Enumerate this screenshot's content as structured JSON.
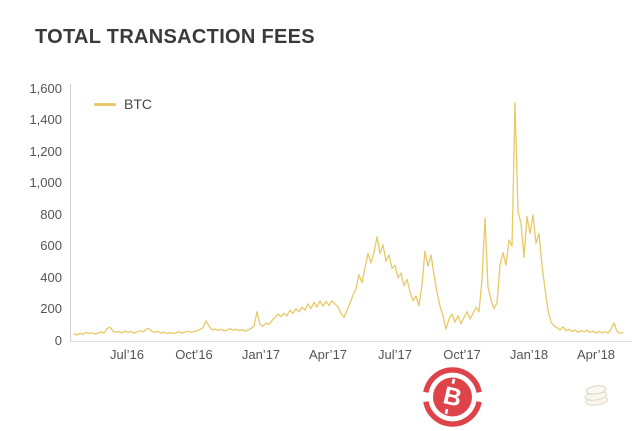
{
  "page": {
    "background": "#ffffff"
  },
  "header": {
    "title": "TOTAL TRANSACTION FEES"
  },
  "chart_data": {
    "type": "line",
    "title": "TOTAL TRANSACTION FEES",
    "xlabel": "",
    "ylabel": "",
    "ylim": [
      0,
      1600
    ],
    "grid": false,
    "legend_position": "top-left",
    "x_tick_labels": [
      "Jul’16",
      "Oct’16",
      "Jan’17",
      "Apr’17",
      "Jul’17",
      "Oct’17",
      "Jan’18",
      "Apr’18"
    ],
    "y_tick_labels": [
      "1,600",
      "1,400",
      "1,200",
      "1,000",
      "800",
      "600",
      "400",
      "200",
      "0"
    ],
    "x_range_note": "evenly spaced daily samples, approx. Apr 2016 - May 2018",
    "series": [
      {
        "name": "BTC",
        "color": "#e7ca65",
        "values": [
          45,
          38,
          48,
          42,
          55,
          47,
          52,
          44,
          50,
          58,
          50,
          78,
          88,
          62,
          55,
          60,
          52,
          63,
          55,
          60,
          50,
          57,
          65,
          58,
          72,
          80,
          60,
          55,
          62,
          50,
          56,
          48,
          54,
          47,
          52,
          58,
          50,
          57,
          62,
          55,
          60,
          66,
          72,
          85,
          128,
          95,
          70,
          76,
          68,
          74,
          64,
          70,
          78,
          68,
          75,
          65,
          72,
          62,
          70,
          80,
          95,
          185,
          105,
          95,
          115,
          105,
          130,
          150,
          170,
          155,
          175,
          160,
          195,
          175,
          205,
          185,
          215,
          195,
          235,
          205,
          245,
          215,
          255,
          220,
          250,
          225,
          255,
          235,
          215,
          175,
          150,
          195,
          240,
          290,
          330,
          420,
          370,
          465,
          555,
          495,
          560,
          660,
          555,
          610,
          505,
          545,
          460,
          480,
          400,
          430,
          350,
          390,
          310,
          255,
          285,
          225,
          360,
          570,
          475,
          545,
          420,
          310,
          220,
          160,
          75,
          140,
          170,
          120,
          160,
          110,
          150,
          185,
          140,
          175,
          215,
          185,
          390,
          780,
          340,
          260,
          205,
          240,
          480,
          560,
          480,
          640,
          600,
          1510,
          820,
          745,
          530,
          790,
          680,
          800,
          620,
          680,
          480,
          330,
          195,
          120,
          95,
          85,
          70,
          90,
          65,
          75,
          60,
          70,
          55,
          65,
          58,
          68,
          55,
          62,
          50,
          60,
          52,
          58,
          50,
          75,
          115,
          60,
          48,
          55
        ]
      }
    ],
    "peak_value_approx": 1510
  },
  "branding": {
    "bitcoin_logo": {
      "symbol": "B",
      "color": "#dd4348"
    },
    "watermark": "coin-stack-icon"
  }
}
